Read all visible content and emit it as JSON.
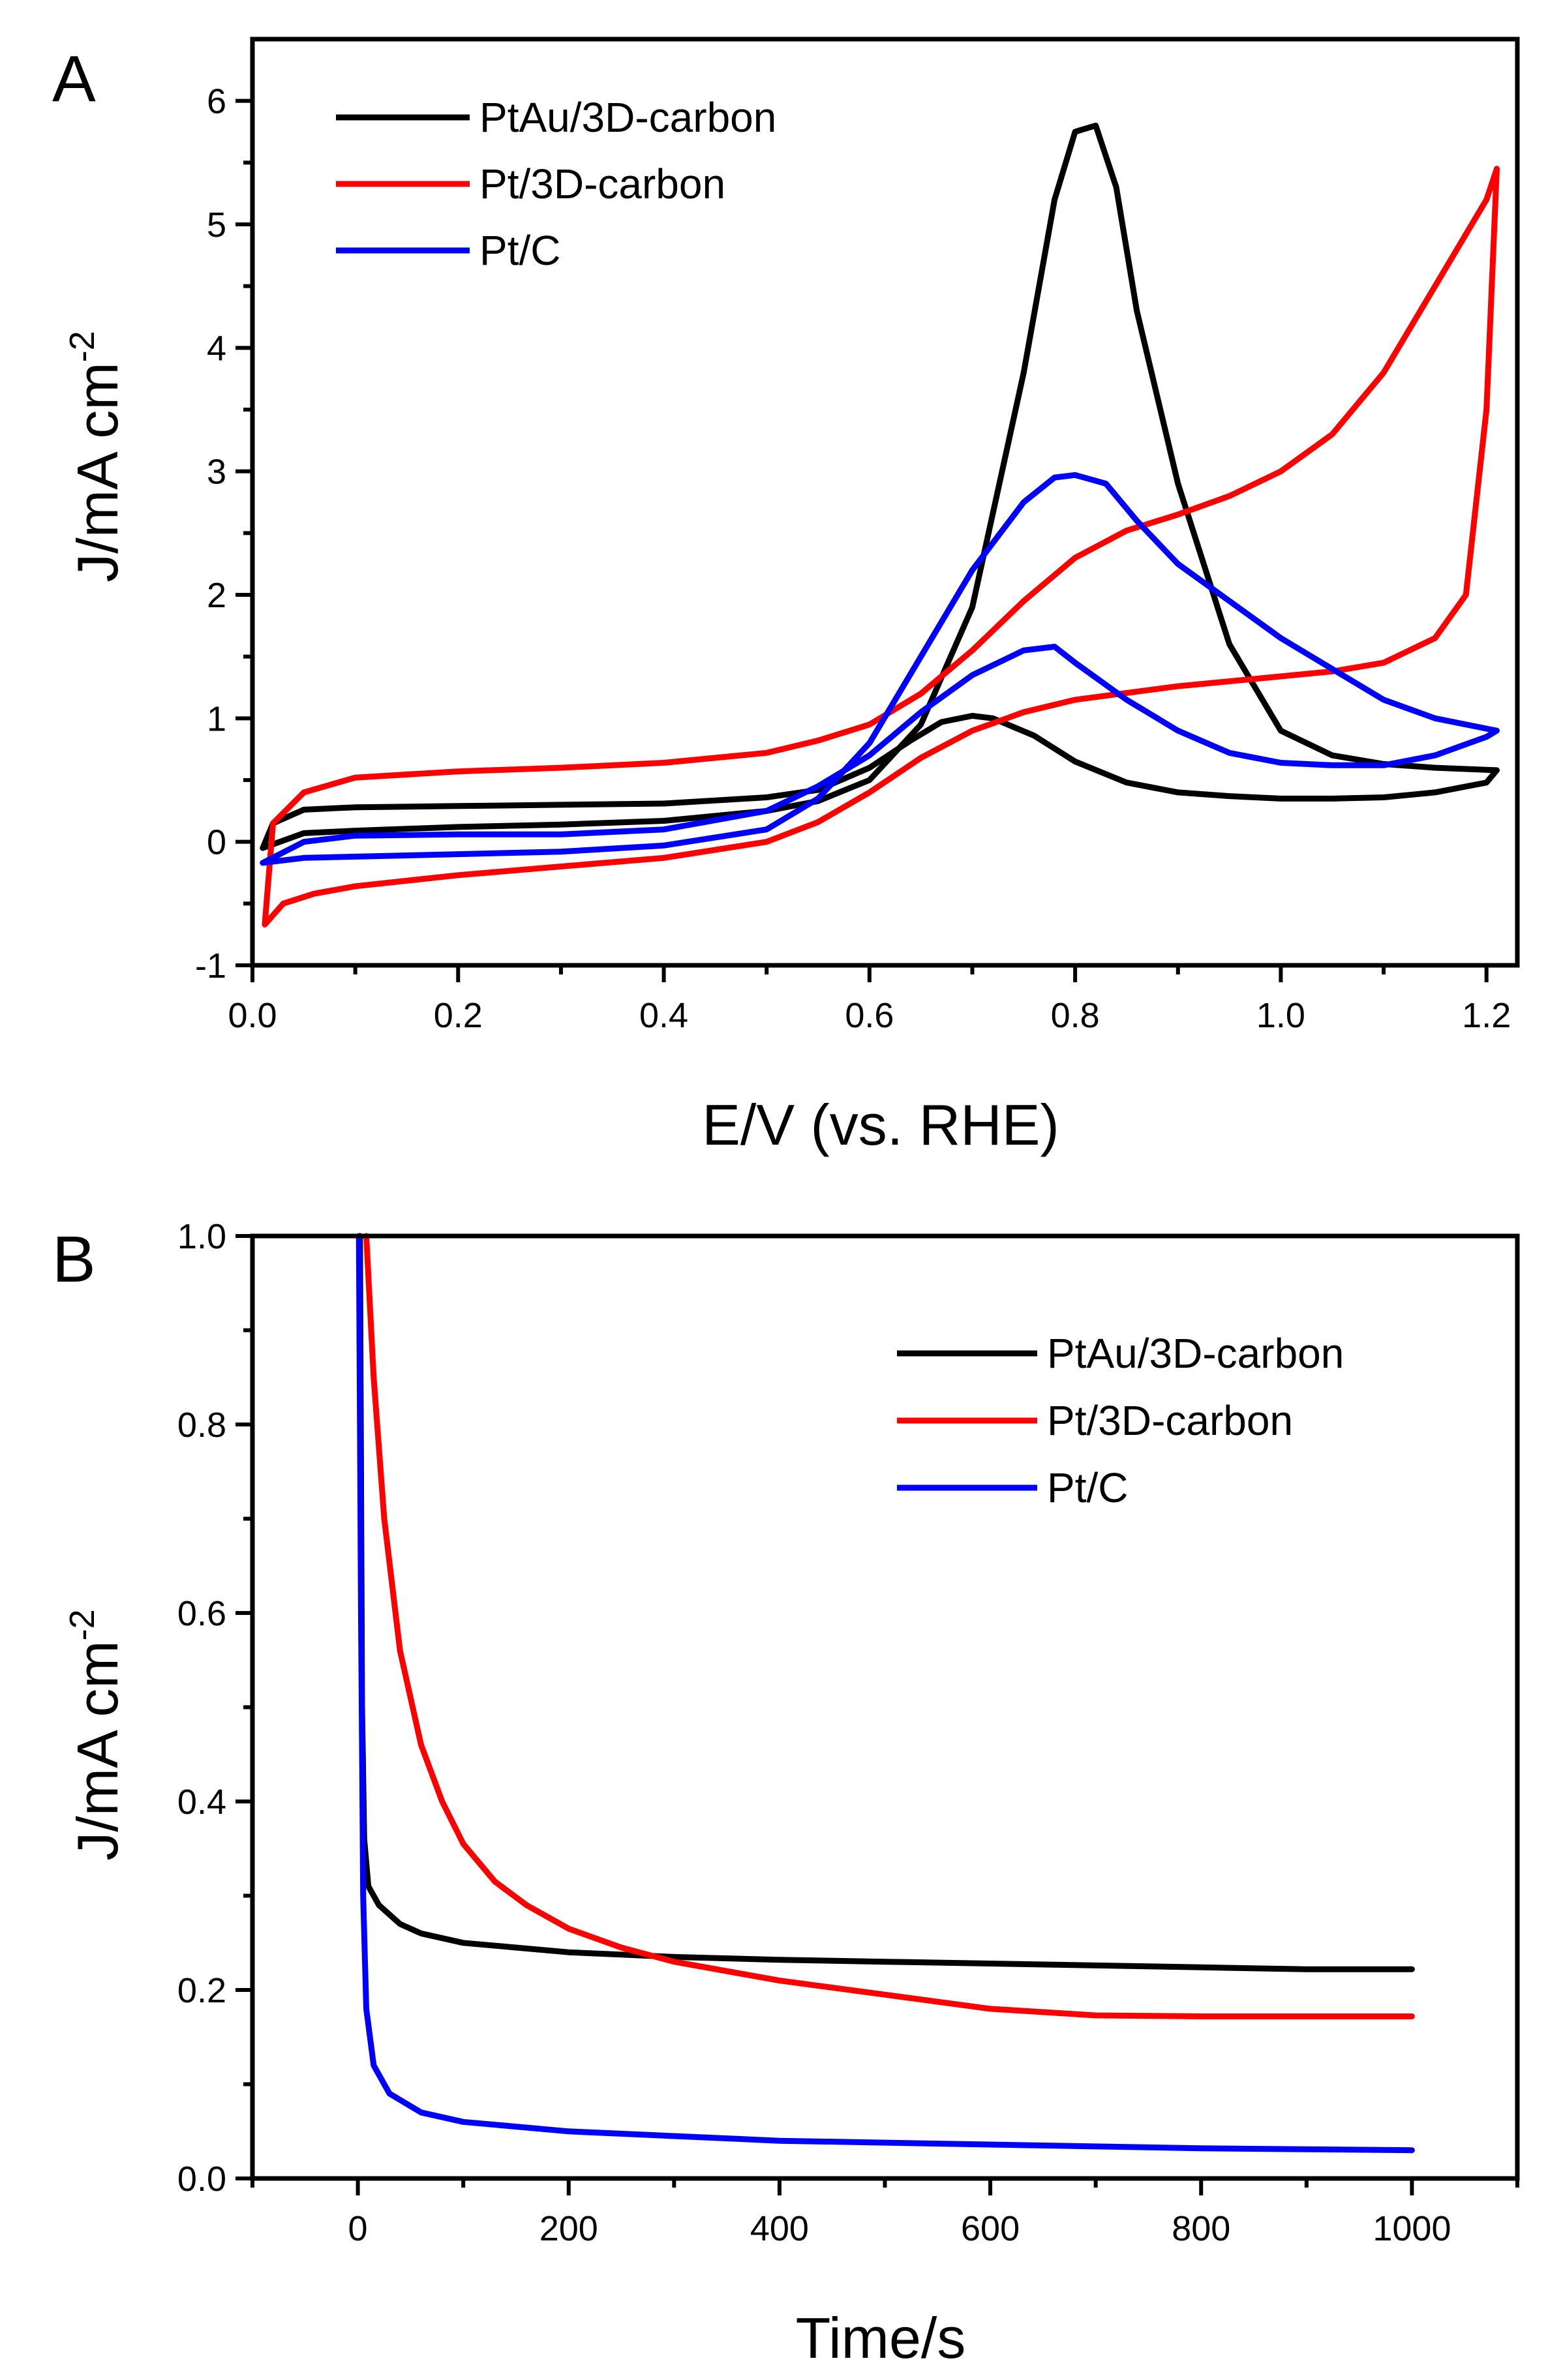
{
  "chart_data": [
    {
      "type": "line",
      "panel_label": "A",
      "xlabel": "E/V (vs. RHE)",
      "ylabel": "J/mA cm",
      "ylabel_sup": "-2",
      "xlim": [
        0.0,
        1.23
      ],
      "ylim": [
        -1,
        6.5
      ],
      "x_ticks": [
        "0.0",
        "0.2",
        "0.4",
        "0.6",
        "0.8",
        "1.0",
        "1.2"
      ],
      "y_ticks": [
        "-1",
        "0",
        "1",
        "2",
        "3",
        "4",
        "5",
        "6"
      ],
      "legend_position": "top-left",
      "series": [
        {
          "name": "PtAu/3D-carbon",
          "color": "#000000",
          "points": [
            [
              0.01,
              -0.05
            ],
            [
              0.05,
              0.07
            ],
            [
              0.1,
              0.09
            ],
            [
              0.2,
              0.12
            ],
            [
              0.3,
              0.14
            ],
            [
              0.4,
              0.17
            ],
            [
              0.5,
              0.25
            ],
            [
              0.55,
              0.33
            ],
            [
              0.6,
              0.5
            ],
            [
              0.65,
              0.95
            ],
            [
              0.7,
              1.9
            ],
            [
              0.75,
              3.8
            ],
            [
              0.78,
              5.2
            ],
            [
              0.8,
              5.75
            ],
            [
              0.82,
              5.8
            ],
            [
              0.84,
              5.3
            ],
            [
              0.86,
              4.3
            ],
            [
              0.9,
              2.9
            ],
            [
              0.95,
              1.6
            ],
            [
              1.0,
              0.9
            ],
            [
              1.05,
              0.7
            ],
            [
              1.1,
              0.63
            ],
            [
              1.15,
              0.6
            ],
            [
              1.21,
              0.58
            ],
            [
              1.2,
              0.48
            ],
            [
              1.15,
              0.4
            ],
            [
              1.1,
              0.36
            ],
            [
              1.05,
              0.35
            ],
            [
              1.0,
              0.35
            ],
            [
              0.95,
              0.37
            ],
            [
              0.9,
              0.4
            ],
            [
              0.85,
              0.48
            ],
            [
              0.8,
              0.65
            ],
            [
              0.76,
              0.86
            ],
            [
              0.72,
              1.0
            ],
            [
              0.7,
              1.02
            ],
            [
              0.67,
              0.97
            ],
            [
              0.64,
              0.82
            ],
            [
              0.6,
              0.6
            ],
            [
              0.55,
              0.42
            ],
            [
              0.5,
              0.36
            ],
            [
              0.4,
              0.31
            ],
            [
              0.3,
              0.3
            ],
            [
              0.2,
              0.29
            ],
            [
              0.1,
              0.28
            ],
            [
              0.05,
              0.26
            ],
            [
              0.02,
              0.15
            ],
            [
              0.01,
              -0.05
            ]
          ]
        },
        {
          "name": "Pt/3D-carbon",
          "color": "#ff0000",
          "points": [
            [
              0.012,
              -0.67
            ],
            [
              0.03,
              -0.5
            ],
            [
              0.06,
              -0.42
            ],
            [
              0.1,
              -0.36
            ],
            [
              0.2,
              -0.27
            ],
            [
              0.3,
              -0.2
            ],
            [
              0.4,
              -0.13
            ],
            [
              0.5,
              0.0
            ],
            [
              0.55,
              0.16
            ],
            [
              0.6,
              0.4
            ],
            [
              0.65,
              0.68
            ],
            [
              0.7,
              0.9
            ],
            [
              0.75,
              1.05
            ],
            [
              0.8,
              1.15
            ],
            [
              0.9,
              1.26
            ],
            [
              1.0,
              1.34
            ],
            [
              1.05,
              1.38
            ],
            [
              1.1,
              1.45
            ],
            [
              1.15,
              1.65
            ],
            [
              1.18,
              2.0
            ],
            [
              1.2,
              3.5
            ],
            [
              1.21,
              5.45
            ],
            [
              1.2,
              5.2
            ],
            [
              1.15,
              4.5
            ],
            [
              1.1,
              3.8
            ],
            [
              1.05,
              3.3
            ],
            [
              1.0,
              3.0
            ],
            [
              0.95,
              2.8
            ],
            [
              0.9,
              2.65
            ],
            [
              0.85,
              2.52
            ],
            [
              0.8,
              2.3
            ],
            [
              0.75,
              1.95
            ],
            [
              0.7,
              1.55
            ],
            [
              0.65,
              1.2
            ],
            [
              0.6,
              0.95
            ],
            [
              0.55,
              0.82
            ],
            [
              0.5,
              0.72
            ],
            [
              0.4,
              0.64
            ],
            [
              0.3,
              0.6
            ],
            [
              0.2,
              0.57
            ],
            [
              0.1,
              0.52
            ],
            [
              0.05,
              0.4
            ],
            [
              0.02,
              0.15
            ],
            [
              0.012,
              -0.67
            ]
          ]
        },
        {
          "name": "Pt/C",
          "color": "#0000ff",
          "points": [
            [
              0.01,
              -0.17
            ],
            [
              0.05,
              -0.13
            ],
            [
              0.1,
              -0.12
            ],
            [
              0.2,
              -0.1
            ],
            [
              0.3,
              -0.08
            ],
            [
              0.4,
              -0.03
            ],
            [
              0.5,
              0.1
            ],
            [
              0.55,
              0.35
            ],
            [
              0.6,
              0.8
            ],
            [
              0.65,
              1.5
            ],
            [
              0.7,
              2.2
            ],
            [
              0.75,
              2.75
            ],
            [
              0.78,
              2.95
            ],
            [
              0.8,
              2.97
            ],
            [
              0.83,
              2.9
            ],
            [
              0.86,
              2.6
            ],
            [
              0.9,
              2.25
            ],
            [
              0.95,
              1.95
            ],
            [
              1.0,
              1.65
            ],
            [
              1.05,
              1.4
            ],
            [
              1.1,
              1.15
            ],
            [
              1.15,
              1.0
            ],
            [
              1.21,
              0.9
            ],
            [
              1.2,
              0.85
            ],
            [
              1.15,
              0.7
            ],
            [
              1.1,
              0.62
            ],
            [
              1.05,
              0.62
            ],
            [
              1.0,
              0.64
            ],
            [
              0.95,
              0.72
            ],
            [
              0.9,
              0.9
            ],
            [
              0.85,
              1.15
            ],
            [
              0.8,
              1.45
            ],
            [
              0.78,
              1.58
            ],
            [
              0.75,
              1.55
            ],
            [
              0.7,
              1.35
            ],
            [
              0.65,
              1.05
            ],
            [
              0.6,
              0.7
            ],
            [
              0.55,
              0.45
            ],
            [
              0.5,
              0.25
            ],
            [
              0.4,
              0.1
            ],
            [
              0.3,
              0.06
            ],
            [
              0.2,
              0.06
            ],
            [
              0.1,
              0.05
            ],
            [
              0.05,
              0.0
            ],
            [
              0.01,
              -0.17
            ]
          ]
        }
      ]
    },
    {
      "type": "line",
      "panel_label": "B",
      "xlabel": "Time/s",
      "ylabel": "J/mA cm",
      "ylabel_sup": "-2",
      "xlim": [
        -100,
        1100
      ],
      "ylim": [
        0.0,
        1.0
      ],
      "x_ticks": [
        "0",
        "200",
        "400",
        "600",
        "800",
        "1000"
      ],
      "y_ticks": [
        "0.0",
        "0.2",
        "0.4",
        "0.6",
        "0.8",
        "1.0"
      ],
      "legend_position": "top-right",
      "series": [
        {
          "name": "PtAu/3D-carbon",
          "color": "#000000",
          "points": [
            [
              2,
              1.0
            ],
            [
              4,
              0.5
            ],
            [
              6,
              0.36
            ],
            [
              10,
              0.31
            ],
            [
              20,
              0.29
            ],
            [
              40,
              0.27
            ],
            [
              60,
              0.26
            ],
            [
              100,
              0.25
            ],
            [
              150,
              0.245
            ],
            [
              200,
              0.24
            ],
            [
              300,
              0.235
            ],
            [
              400,
              0.232
            ],
            [
              500,
              0.23
            ],
            [
              600,
              0.228
            ],
            [
              700,
              0.226
            ],
            [
              800,
              0.224
            ],
            [
              900,
              0.222
            ],
            [
              1000,
              0.222
            ]
          ]
        },
        {
          "name": "Pt/3D-carbon",
          "color": "#ff0000",
          "points": [
            [
              8,
              1.0
            ],
            [
              15,
              0.85
            ],
            [
              25,
              0.7
            ],
            [
              40,
              0.56
            ],
            [
              60,
              0.46
            ],
            [
              80,
              0.4
            ],
            [
              100,
              0.355
            ],
            [
              130,
              0.315
            ],
            [
              160,
              0.29
            ],
            [
              200,
              0.265
            ],
            [
              250,
              0.245
            ],
            [
              300,
              0.23
            ],
            [
              400,
              0.21
            ],
            [
              500,
              0.195
            ],
            [
              600,
              0.18
            ],
            [
              700,
              0.173
            ],
            [
              800,
              0.172
            ],
            [
              900,
              0.172
            ],
            [
              1000,
              0.172
            ]
          ]
        },
        {
          "name": "Pt/C",
          "color": "#0000ff",
          "points": [
            [
              1,
              1.0
            ],
            [
              3,
              0.6
            ],
            [
              5,
              0.3
            ],
            [
              8,
              0.18
            ],
            [
              15,
              0.12
            ],
            [
              30,
              0.09
            ],
            [
              60,
              0.07
            ],
            [
              100,
              0.06
            ],
            [
              200,
              0.05
            ],
            [
              300,
              0.045
            ],
            [
              400,
              0.04
            ],
            [
              500,
              0.038
            ],
            [
              600,
              0.036
            ],
            [
              700,
              0.034
            ],
            [
              800,
              0.032
            ],
            [
              900,
              0.031
            ],
            [
              1000,
              0.03
            ]
          ]
        }
      ]
    }
  ]
}
